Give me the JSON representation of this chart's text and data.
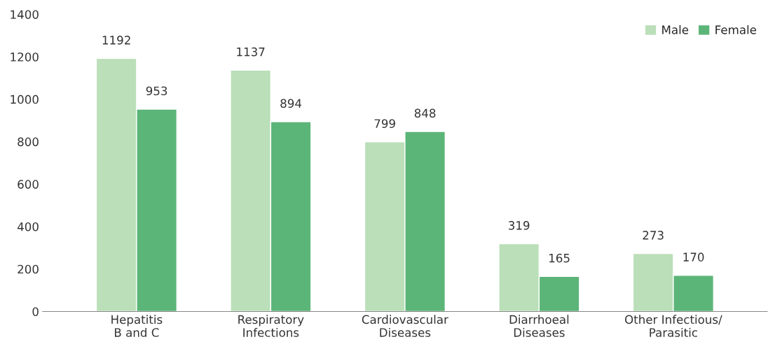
{
  "chart_data": {
    "type": "bar",
    "categories": [
      "Hepatitis\nB and C",
      "Respiratory\nInfections",
      "Cardiovascular\nDiseases",
      "Diarrhoeal\nDiseases",
      "Other Infectious/\nParasitic"
    ],
    "series": [
      {
        "name": "Male",
        "color": "#bbdfb9",
        "values": [
          1192,
          1137,
          799,
          319,
          273
        ]
      },
      {
        "name": "Female",
        "color": "#5cb578",
        "values": [
          953,
          894,
          848,
          165,
          170
        ]
      }
    ],
    "ylim": [
      0,
      1400
    ],
    "yticks": [
      0,
      200,
      400,
      600,
      800,
      1000,
      1200,
      1400
    ],
    "data_labels": true,
    "legend": "top right",
    "grid": false
  }
}
